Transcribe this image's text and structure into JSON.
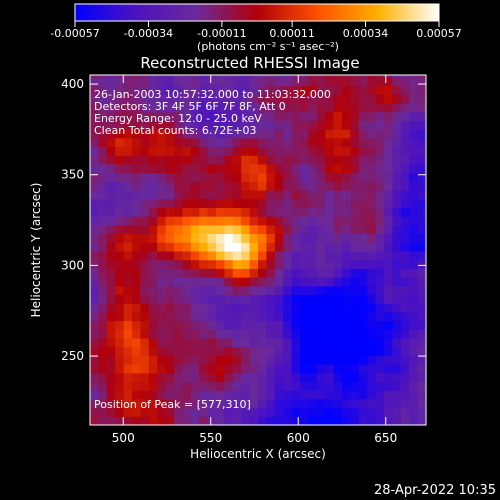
{
  "chart_data": {
    "type": "heatmap",
    "title": "Reconstructed RHESSI Image",
    "xlabel": "Heliocentric X (arcsec)",
    "ylabel": "Heliocentric Y (arcsec)",
    "xlim": [
      481,
      673
    ],
    "ylim": [
      212,
      405
    ],
    "x_ticks": [
      500,
      550,
      600,
      650
    ],
    "y_ticks": [
      250,
      300,
      350,
      400
    ],
    "colorbar": {
      "label": "(photons cm⁻² s⁻¹ asec⁻²)",
      "min": -0.00057,
      "max": 0.00057,
      "ticks": [
        -0.00057,
        -0.00034,
        -0.00011,
        0.00011,
        0.00034,
        0.00057
      ],
      "tick_labels": [
        "-0.00057",
        "-0.00034",
        "-0.00011",
        "0.00011",
        "0.00034",
        "0.00057"
      ],
      "colors": [
        "#0000ff",
        "#4c12c0",
        "#6a2a9a",
        "#b0000a",
        "#ff5000",
        "#ffb000",
        "#ffffff"
      ]
    },
    "annotations": [
      "26-Jan-2003 10:57:32.000 to 11:03:32.000",
      "Detectors: 3F 4F 5F 6F 7F 8F, Att 0",
      "Energy Range: 12.0 - 25.0 keV",
      "Clean    Total counts: 6.72E+03",
      "Position of Peak = [577,310]"
    ],
    "peak": {
      "x": 577,
      "y": 310,
      "value": 0.00057
    },
    "sources": [
      {
        "x": 568,
        "y": 308,
        "amp": 0.00062,
        "sx": 15,
        "sy": 12
      },
      {
        "x": 552,
        "y": 320,
        "amp": 0.00034,
        "sx": 16,
        "sy": 10
      },
      {
        "x": 520,
        "y": 318,
        "amp": 0.00022,
        "sx": 18,
        "sy": 10
      },
      {
        "x": 500,
        "y": 300,
        "amp": 0.00016,
        "sx": 10,
        "sy": 18
      },
      {
        "x": 505,
        "y": 255,
        "amp": 0.0003,
        "sx": 18,
        "sy": 22
      },
      {
        "x": 560,
        "y": 248,
        "amp": 0.00024,
        "sx": 12,
        "sy": 10
      },
      {
        "x": 585,
        "y": 258,
        "amp": 0.0002,
        "sx": 10,
        "sy": 10
      },
      {
        "x": 520,
        "y": 368,
        "amp": 0.00028,
        "sx": 22,
        "sy": 12
      },
      {
        "x": 575,
        "y": 350,
        "amp": 0.00026,
        "sx": 14,
        "sy": 12
      },
      {
        "x": 625,
        "y": 375,
        "amp": 0.00024,
        "sx": 10,
        "sy": 16
      },
      {
        "x": 640,
        "y": 330,
        "amp": 0.00018,
        "sx": 8,
        "sy": 12
      },
      {
        "x": 650,
        "y": 395,
        "amp": 0.00016,
        "sx": 10,
        "sy": 8
      },
      {
        "x": 600,
        "y": 395,
        "amp": 0.00018,
        "sx": 10,
        "sy": 6
      },
      {
        "x": 615,
        "y": 300,
        "amp": 0.0001,
        "sx": 8,
        "sy": 8
      },
      {
        "x": 500,
        "y": 220,
        "amp": 0.00016,
        "sx": 14,
        "sy": 8
      },
      {
        "x": 620,
        "y": 265,
        "amp": -0.0005,
        "sx": 32,
        "sy": 28
      },
      {
        "x": 545,
        "y": 380,
        "amp": -0.00022,
        "sx": 18,
        "sy": 10
      },
      {
        "x": 500,
        "y": 335,
        "amp": -0.00018,
        "sx": 12,
        "sy": 12
      },
      {
        "x": 480,
        "y": 280,
        "amp": -0.00012,
        "sx": 10,
        "sy": 10
      },
      {
        "x": 670,
        "y": 330,
        "amp": -0.00028,
        "sx": 14,
        "sy": 30
      },
      {
        "x": 610,
        "y": 215,
        "amp": -0.0003,
        "sx": 30,
        "sy": 10
      }
    ]
  },
  "footer": {
    "timestamp": "28-Apr-2022 10:35"
  }
}
